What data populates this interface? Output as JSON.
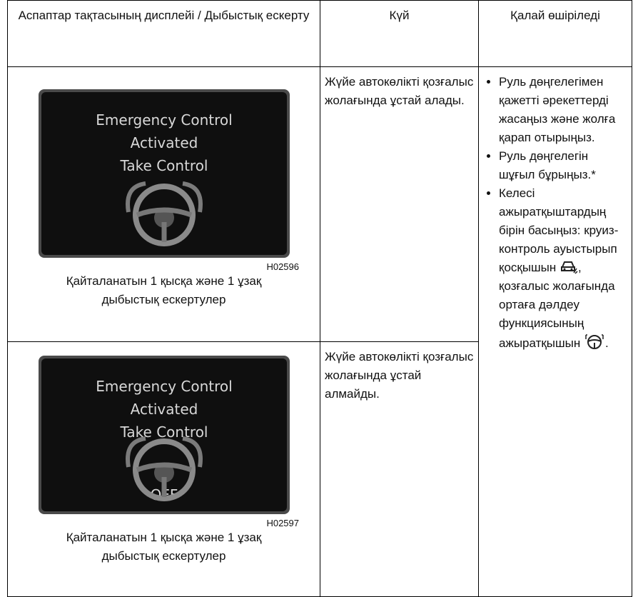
{
  "table": {
    "header": [
      "Аспаптар тақтасының дисплейі / Дыбыстық ескерту",
      "Күй",
      "Қалай өшіріледі"
    ],
    "rows": [
      {
        "display": {
          "lines": [
            "Emergency Control",
            "Activated",
            "Take Control"
          ],
          "code": "H02596"
        },
        "sound": "Қайталанатын 1 қысқа және 1 ұзақ дыбыстық ескертулер",
        "state": "Жүйе автокөлікті қозғалыс жолағында ұстай алады."
      },
      {
        "display": {
          "lines": [
            "Emergency Control",
            "Activated",
            "Take Control",
            "OFF"
          ],
          "code": "H02597"
        },
        "sound": "Қайталанатын 1 қысқа және 1 ұзақ дыбыстық ескертулер",
        "state": "Жүйе автокөлікті қозғалыс жолағында ұстай алмайды."
      }
    ],
    "how": [
      "Руль дөңгелегімен қажетті әрекеттерді жасаңыз және жолға қарап отырыңыз.",
      "Руль дөңгелегін шұғыл бұрыңыз.*",
      [
        "Келесі ажыратқыштардың бірін басыңыз: круиз-контроль ауыстырып қосқышын",
        ", қозғалыс жолағында ортаға дәлдеу функциясының ажыратқышын",
        "."
      ]
    ]
  }
}
